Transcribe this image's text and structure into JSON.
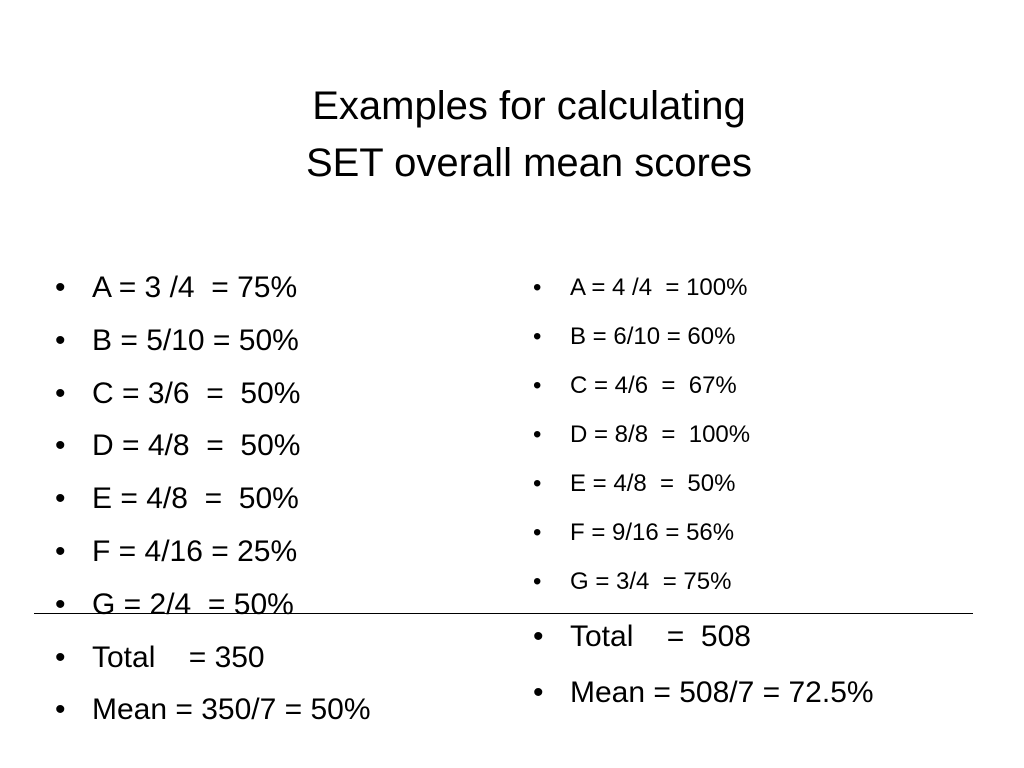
{
  "slide": {
    "title_lines": [
      "Examples for calculating",
      "SET overall mean scores"
    ],
    "bullet_glyph": "•",
    "left_items": [
      "A = 3 /4  = 75%",
      "B = 5/10 = 50%",
      "C = 3/6  =  50%",
      "D = 4/8  =  50%",
      "E = 4/8  =  50%",
      "F = 4/16 = 25%",
      "G = 2/4  = 50%",
      "Total    = 350",
      "Mean = 350/7 = 50%"
    ],
    "right_items": [
      "A = 4 /4  = 100%",
      "B = 6/10 = 60%",
      "C = 4/6  =  67%",
      "D = 8/8  =  100%",
      "E = 4/8  =  50%",
      "F = 9/16 = 56%",
      "G = 3/4  = 75%",
      "Total    =  508",
      "Mean = 508/7 = 72.5%"
    ]
  }
}
